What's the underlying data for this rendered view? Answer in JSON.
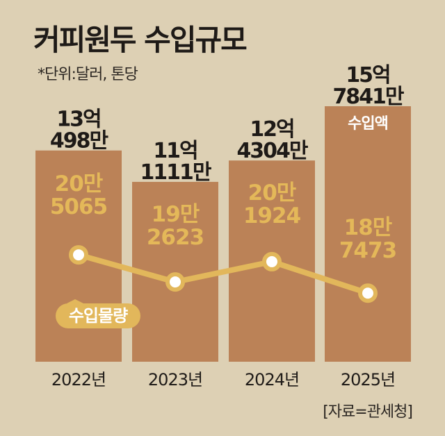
{
  "title": "커피원두 수입규모",
  "subtitle": "*단위:달러, 톤당",
  "source": "[자료=관세청]",
  "chart_data": {
    "type": "bar",
    "categories": [
      "2022년",
      "2023년",
      "2024년",
      "2025년"
    ],
    "series": [
      {
        "name": "수입액",
        "values": [
          1304980000,
          1111110000,
          1243040000,
          1578410000
        ],
        "display_values": [
          "13억\n498만",
          "11억\n1111만",
          "12억\n4304만",
          "15억\n7841만"
        ]
      },
      {
        "name": "수입물량",
        "values": [
          205065,
          192623,
          201924,
          187473
        ],
        "display_values": [
          "20만\n5065",
          "19만\n2623",
          "20만\n1924",
          "18만\n7473"
        ]
      }
    ],
    "y_range_for_bars": [
      0,
      1578410000
    ],
    "bar_color": "#bb8257",
    "line_color": "#e2b75b",
    "label_color": "#e4b859",
    "grid": false,
    "legend": [
      "수입액",
      "수입물량"
    ]
  }
}
